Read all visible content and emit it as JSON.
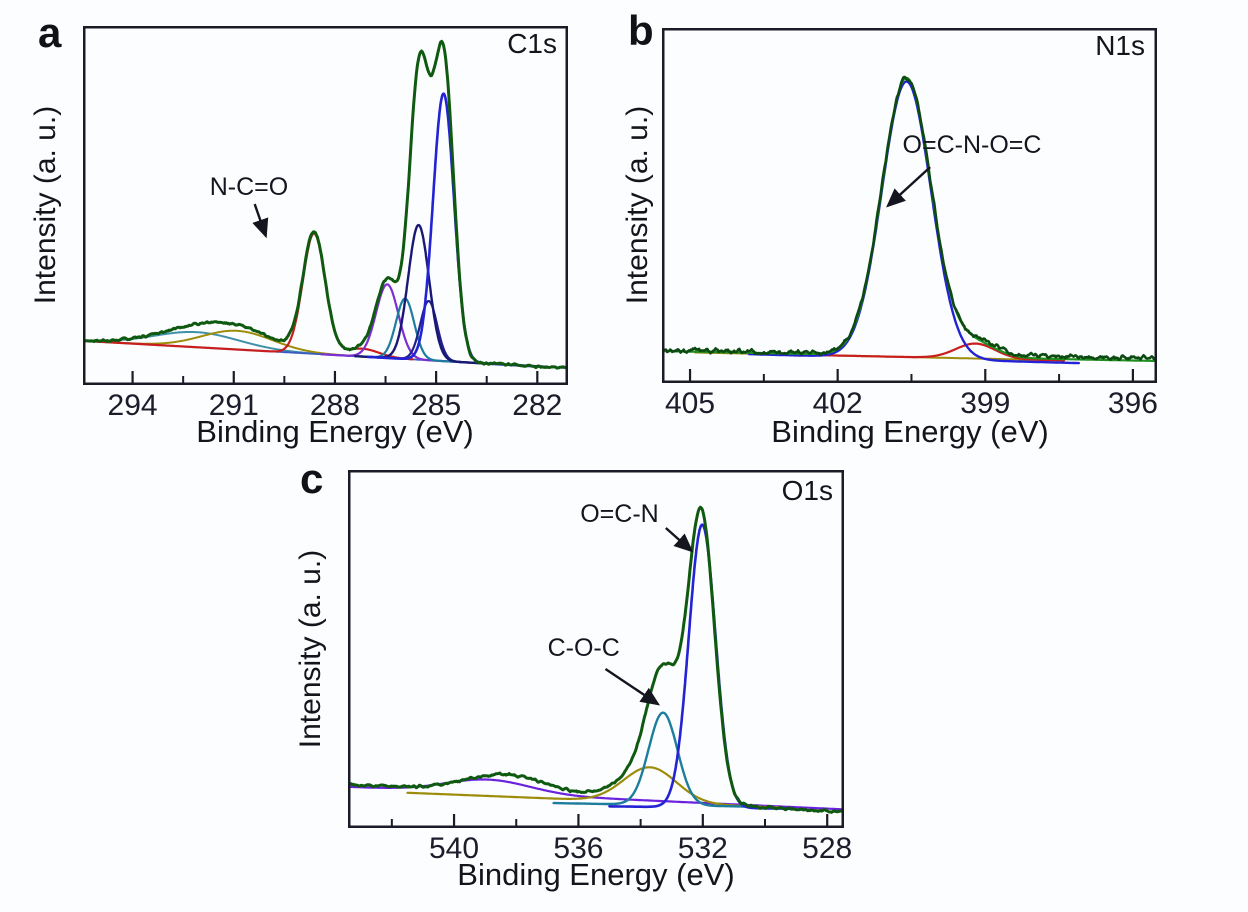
{
  "figure": {
    "background_color": "#fcfdfe",
    "frame_color": "#1b1b28",
    "envelope_color": "#0f5a10",
    "accent_blue": "#2323d4",
    "accent_red": "#c81e1e"
  },
  "chart_data": [
    {
      "type": "line",
      "panel_letter": "a",
      "spectrum_label": "C1s",
      "xlabel": "Binding Energy (eV)",
      "ylabel": "Intensity  (a. u.)",
      "xlim": [
        295.47,
        281.09
      ],
      "xticks": [
        {
          "value": 294,
          "label": "294"
        },
        {
          "value": 291,
          "label": "291"
        },
        {
          "value": 288,
          "label": "288"
        },
        {
          "value": 285,
          "label": "285"
        },
        {
          "value": 282,
          "label": "282"
        }
      ],
      "minor_ticks": [
        292.5,
        289.5,
        286.5,
        283.5
      ],
      "grid": false,
      "legend": "none",
      "annotations": [
        {
          "text": "N-C=O",
          "text_pos": [
            290.55,
            0.545
          ],
          "arrow_from": [
            290.38,
            0.504
          ],
          "arrow_to": [
            290.05,
            0.415
          ]
        }
      ],
      "series": [
        {
          "name": "background-teal-broad",
          "color": "#4090a8",
          "width": 2,
          "baseline": [
            0.123,
            0.047
          ],
          "range": [
            295.47,
            287.4
          ],
          "peaks": [
            {
              "center": 292.1,
              "amp": 0.042,
              "sigma": 1.25
            }
          ]
        },
        {
          "name": "background-darkyellow-broad",
          "color": "#9c8c0a",
          "width": 2,
          "baseline": [
            0.123,
            0.047
          ],
          "range": [
            295.47,
            286.9
          ],
          "peaks": [
            {
              "center": 290.9,
              "amp": 0.052,
              "sigma": 1.05
            }
          ]
        },
        {
          "name": "background-blue-line",
          "color": "#3a5bc0",
          "width": 1.8,
          "baseline": [
            0.123,
            0.047
          ],
          "peaks": []
        },
        {
          "name": "peak-N-C=O-red",
          "color": "#c81e1e",
          "width": 2.2,
          "baseline": [
            0.123,
            0.047
          ],
          "range": [
            295.47,
            285.7
          ],
          "peaks": [
            {
              "center": 288.62,
              "amp": 0.335,
              "sigma": 0.33
            },
            {
              "center": 287.2,
              "amp": 0.022,
              "sigma": 0.5
            }
          ]
        },
        {
          "name": "peak-purple",
          "color": "#7c2fd2",
          "width": 2.2,
          "baseline": [
            0.123,
            0.047
          ],
          "range": [
            288.4,
            284.5
          ],
          "peaks": [
            {
              "center": 286.45,
              "amp": 0.205,
              "sigma": 0.33
            }
          ]
        },
        {
          "name": "peak-teal-small",
          "color": "#1d7d9c",
          "width": 2.2,
          "baseline": [
            0.123,
            0.047
          ],
          "range": [
            287.3,
            284.1
          ],
          "peaks": [
            {
              "center": 285.92,
              "amp": 0.168,
              "sigma": 0.27
            }
          ]
        },
        {
          "name": "peak-navy-small",
          "color": "#20208c",
          "width": 2.2,
          "baseline": [
            0.123,
            0.047
          ],
          "range": [
            286.8,
            283.6
          ],
          "peaks": [
            {
              "center": 285.22,
              "amp": 0.165,
              "sigma": 0.25
            }
          ]
        },
        {
          "name": "peak-navy-tall",
          "color": "#191975",
          "width": 2.4,
          "baseline": [
            0.123,
            0.047
          ],
          "range": [
            287.4,
            283.3
          ],
          "peaks": [
            {
              "center": 285.52,
              "amp": 0.375,
              "sigma": 0.31
            }
          ]
        },
        {
          "name": "peak-blue-tall",
          "color": "#2323d4",
          "width": 2.6,
          "baseline": [
            0.123,
            0.047
          ],
          "range": [
            287.0,
            281.7
          ],
          "peaks": [
            {
              "center": 284.78,
              "amp": 0.745,
              "sigma": 0.31
            }
          ]
        },
        {
          "name": "envelope-data",
          "color": "#0f5a10",
          "width": 3,
          "noise": 0.0045,
          "baseline": [
            0.123,
            0.047
          ],
          "peaks": [
            {
              "center": 284.78,
              "amp": 0.835,
              "sigma": 0.3
            },
            {
              "center": 285.5,
              "amp": 0.8,
              "sigma": 0.3
            },
            {
              "center": 286.45,
              "amp": 0.21,
              "sigma": 0.33
            },
            {
              "center": 288.62,
              "amp": 0.335,
              "sigma": 0.33
            },
            {
              "center": 287.2,
              "amp": 0.02,
              "sigma": 0.5
            },
            {
              "center": 290.9,
              "amp": 0.05,
              "sigma": 1.1
            },
            {
              "center": 292.3,
              "amp": 0.038,
              "sigma": 1.2
            }
          ]
        }
      ]
    },
    {
      "type": "line",
      "panel_letter": "b",
      "spectrum_label": "N1s",
      "xlabel": "Binding Energy (eV)",
      "ylabel": "Intensity  (a. u.)",
      "xlim": [
        405.57,
        395.51
      ],
      "xticks": [
        {
          "value": 405,
          "label": "405"
        },
        {
          "value": 402,
          "label": "402"
        },
        {
          "value": 399,
          "label": "399"
        },
        {
          "value": 396,
          "label": "396"
        }
      ],
      "minor_ticks": [
        403.5,
        400.5,
        397.5
      ],
      "grid": false,
      "legend": "none",
      "annotations": [
        {
          "text": "O=C-N-O=C",
          "text_pos": [
            399.27,
            0.665
          ],
          "arrow_from": [
            400.12,
            0.608
          ],
          "arrow_to": [
            400.98,
            0.499
          ]
        }
      ],
      "series": [
        {
          "name": "background-darkyellow-line",
          "color": "#9c8c0a",
          "width": 2,
          "baseline": [
            0.088,
            0.058
          ],
          "range": [
            404.9,
            397.6
          ],
          "peaks": []
        },
        {
          "name": "peak-red-small",
          "color": "#c81e1e",
          "width": 2.2,
          "baseline": [
            0.088,
            0.058
          ],
          "range": [
            403.5,
            397.4
          ],
          "peaks": [
            {
              "center": 399.2,
              "amp": 0.042,
              "sigma": 0.4
            }
          ]
        },
        {
          "name": "peak-blue-main",
          "color": "#2323d4",
          "width": 2.4,
          "baseline": [
            0.088,
            0.05
          ],
          "range": [
            403.8,
            397.1
          ],
          "peaks": [
            {
              "center": 400.6,
              "amp": 0.78,
              "sigma": 0.5
            }
          ]
        },
        {
          "name": "fit-green",
          "color": "#1f8f1f",
          "width": 2.2,
          "baseline": [
            0.09,
            0.062
          ],
          "peaks": [
            {
              "center": 400.6,
              "amp": 0.783,
              "sigma": 0.5
            },
            {
              "center": 399.2,
              "amp": 0.04,
              "sigma": 0.42
            }
          ]
        },
        {
          "name": "data-darkgreen",
          "color": "#0c4a12",
          "width": 2.6,
          "noise": 0.009,
          "baseline": [
            0.092,
            0.07
          ],
          "peaks": [
            {
              "center": 400.6,
              "amp": 0.78,
              "sigma": 0.5
            },
            {
              "center": 399.15,
              "amp": 0.04,
              "sigma": 0.42
            }
          ]
        }
      ]
    },
    {
      "type": "line",
      "panel_letter": "c",
      "spectrum_label": "O1s",
      "xlabel": "Binding Energy (eV)",
      "ylabel": "Intensity  (a. u.)",
      "xlim": [
        543.41,
        527.46
      ],
      "xticks": [
        {
          "value": 540,
          "label": "540"
        },
        {
          "value": 536,
          "label": "536"
        },
        {
          "value": 532,
          "label": "532"
        },
        {
          "value": 528,
          "label": "528"
        }
      ],
      "minor_ticks": [
        542,
        538,
        534,
        530
      ],
      "grid": false,
      "legend": "none",
      "annotations": [
        {
          "text": "O=C-N",
          "text_pos": [
            534.68,
            0.872
          ],
          "arrow_from": [
            533.19,
            0.838
          ],
          "arrow_to": [
            532.36,
            0.774
          ]
        },
        {
          "text": "C-O-C",
          "text_pos": [
            535.83,
            0.497
          ],
          "arrow_from": [
            535.13,
            0.444
          ],
          "arrow_to": [
            533.44,
            0.346
          ]
        }
      ],
      "series": [
        {
          "name": "background-purple-broad",
          "color": "#6a22dd",
          "width": 2.2,
          "baseline": [
            0.115,
            0.052
          ],
          "peaks": [
            {
              "center": 538.9,
              "amp": 0.038,
              "sigma": 1.35
            }
          ]
        },
        {
          "name": "peak-darkyellow-broad",
          "color": "#9c8c0a",
          "width": 2.2,
          "baseline": [
            0.105,
            0.05
          ],
          "range": [
            541.5,
            529.5
          ],
          "peaks": [
            {
              "center": 533.7,
              "amp": 0.098,
              "sigma": 0.85
            }
          ]
        },
        {
          "name": "peak-teal-C-O-C",
          "color": "#1d7d9c",
          "width": 2.4,
          "baseline": [
            0.08,
            0.055
          ],
          "range": [
            536.8,
            530.6
          ],
          "peaks": [
            {
              "center": 533.28,
              "amp": 0.258,
              "sigma": 0.46
            }
          ]
        },
        {
          "name": "peak-blue-O=C-N",
          "color": "#2323d4",
          "width": 2.6,
          "baseline": [
            0.07,
            0.052
          ],
          "range": [
            535.0,
            529.2
          ],
          "peaks": [
            {
              "center": 532.02,
              "amp": 0.79,
              "sigma": 0.43
            }
          ]
        },
        {
          "name": "envelope-data",
          "color": "#0f5a10",
          "width": 3,
          "noise": 0.0045,
          "baseline": [
            0.122,
            0.045
          ],
          "peaks": [
            {
              "center": 532.05,
              "amp": 0.8,
              "sigma": 0.43
            },
            {
              "center": 533.28,
              "amp": 0.3,
              "sigma": 0.5
            },
            {
              "center": 533.8,
              "amp": 0.085,
              "sigma": 0.9
            },
            {
              "center": 538.3,
              "amp": 0.052,
              "sigma": 1.3
            }
          ]
        }
      ]
    }
  ]
}
